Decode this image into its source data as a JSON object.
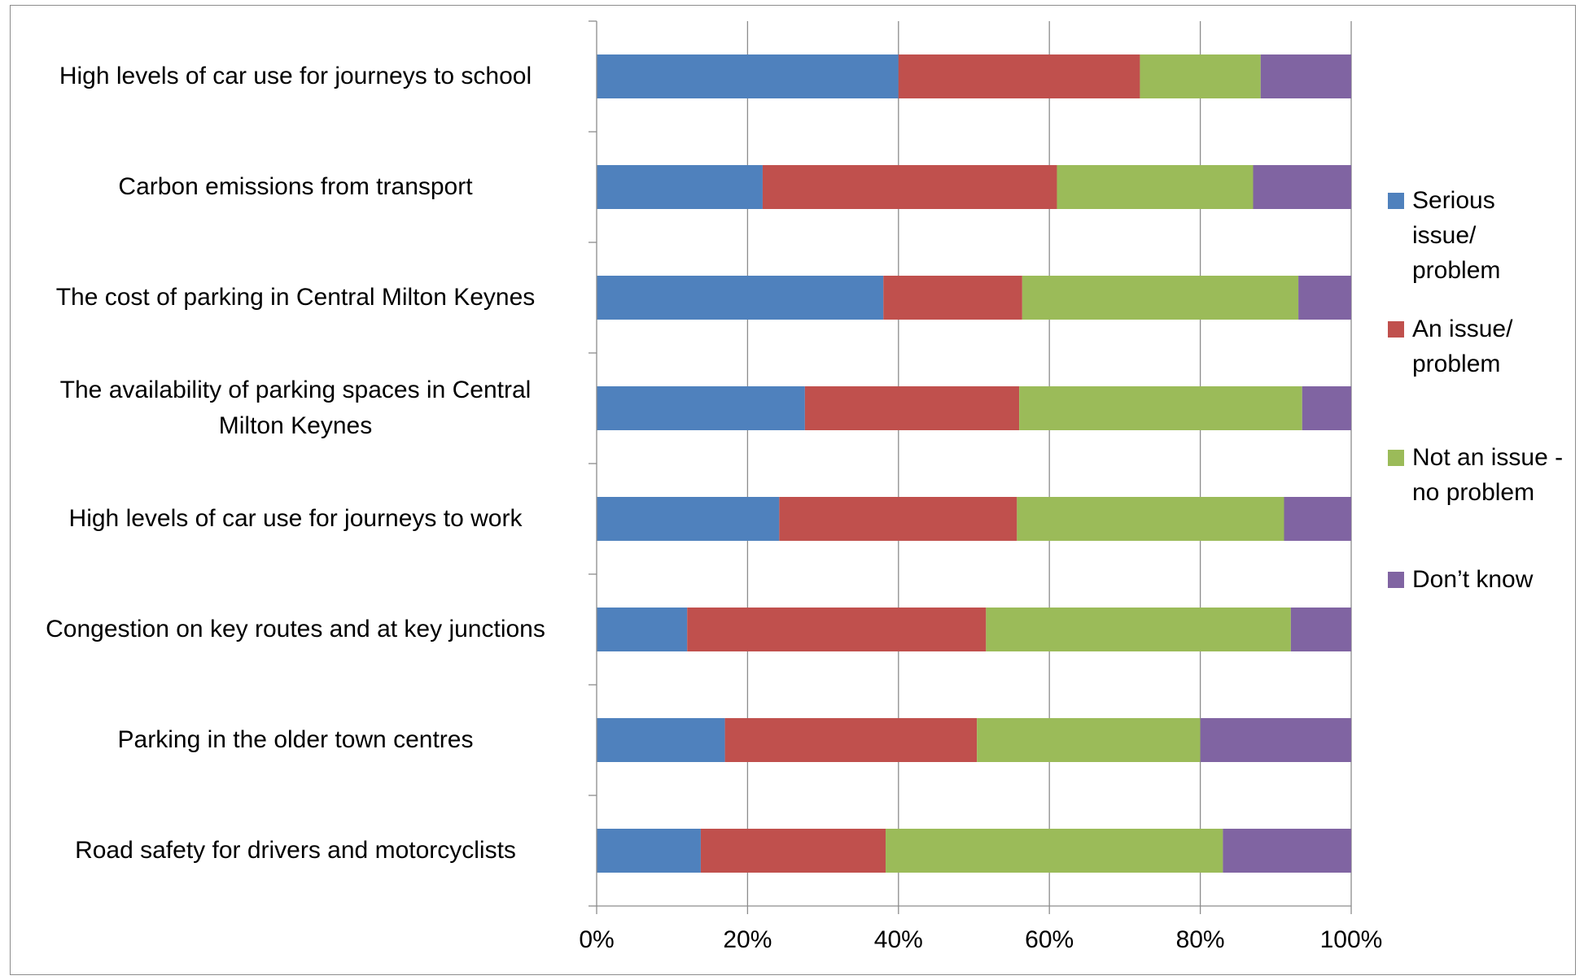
{
  "chart_data": {
    "type": "bar",
    "orientation": "horizontal",
    "stacked": "percent",
    "categories": [
      "High levels  of car use for journeys to school",
      "Carbon emissions  from transport",
      "The cost of parking in Central Milton Keynes",
      "The availability of parking spaces in Central Milton Keynes",
      "High levels  of car use for journeys to work",
      "Congestion on key routes and at key junctions",
      "Parking in the older town centres",
      "Road safety for drivers and motorcyclists"
    ],
    "series": [
      {
        "name": "Serious issue/ problem",
        "color": "#4f81bd",
        "values": [
          40,
          22,
          38,
          27.6,
          24.2,
          12,
          17,
          13.8
        ]
      },
      {
        "name": "An issue/ problem",
        "color": "#c0504d",
        "values": [
          32,
          39,
          18.4,
          28.4,
          31.5,
          39.6,
          33.4,
          24.5
        ]
      },
      {
        "name": "Not an issue - no problem",
        "color": "#9bbb59",
        "values": [
          16,
          26,
          36.6,
          37.5,
          35.4,
          40.4,
          29.6,
          44.7
        ]
      },
      {
        "name": "Don’t know",
        "color": "#8064a2",
        "values": [
          12,
          13,
          7,
          6.5,
          8.9,
          8,
          20,
          17
        ]
      }
    ],
    "x_ticks": [
      "0%",
      "20%",
      "40%",
      "60%",
      "80%",
      "100%"
    ],
    "xlim": [
      0,
      100
    ],
    "grid": "vertical",
    "legend": "right"
  }
}
